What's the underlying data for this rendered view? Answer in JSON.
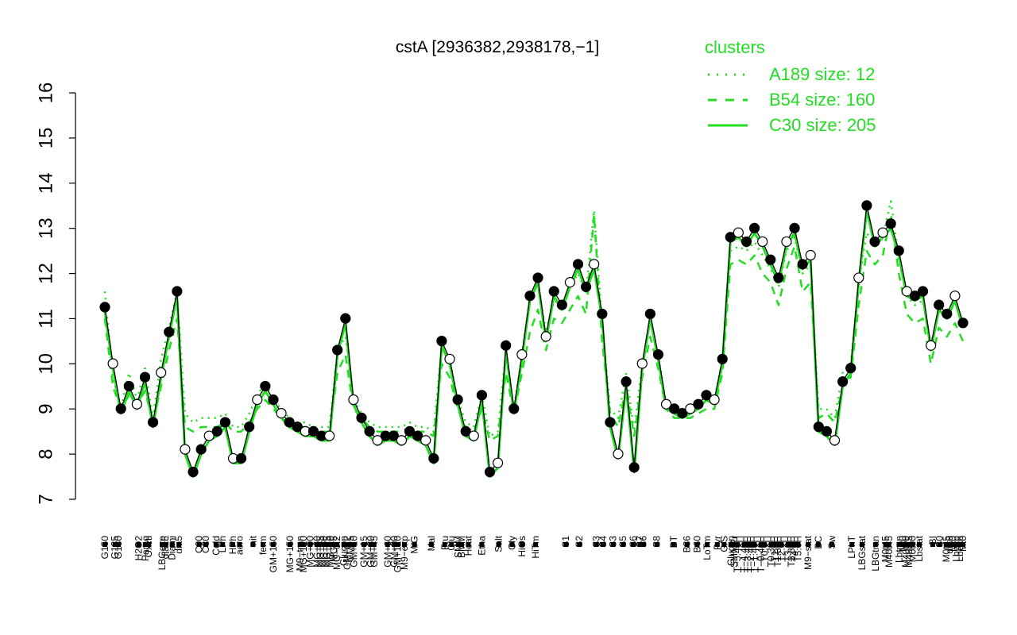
{
  "chart_data": {
    "type": "line",
    "title": "cstA [2936382,2938178,−1]",
    "xlabel": "",
    "ylabel": "",
    "ylim": [
      7,
      16
    ],
    "yticks": [
      7,
      8,
      9,
      10,
      11,
      12,
      13,
      14,
      15,
      16
    ],
    "grid": false,
    "legend_position": "top-right",
    "accent_color": "#22dd22",
    "legend": {
      "title": "clusters",
      "entries": [
        {
          "label": "A189 size: 12",
          "style": "dotted"
        },
        {
          "label": "B54 size: 160",
          "style": "dashed"
        },
        {
          "label": "C30 size: 205",
          "style": "solid"
        }
      ]
    },
    "x_tick_labels": [
      "G150",
      "G135",
      "G180",
      "H2O2",
      "Paraq",
      "Oxctl",
      "LBGexp",
      "dia15",
      "Diami",
      "dia5",
      "C90",
      "C30",
      "Cold",
      "LPh",
      "HPh",
      "aero",
      "nit",
      "ferm",
      "GM+150",
      "MG+150",
      "M9−tran",
      "MG+120",
      "MG+90",
      "MG+60",
      "MG+45",
      "MG+30",
      "MG+15",
      "MG+10",
      "MG+5",
      "MG−0.2",
      "Glucon",
      "GM−0.2",
      "GM+5",
      "GM+10",
      "GM+15",
      "GM+30",
      "GM+45",
      "GM+60",
      "GM+90",
      "GM+120",
      "M9−exp",
      "M/G",
      "Mal",
      "Fru",
      "Glu",
      "SMM",
      "BMM",
      "Heat",
      "Etha",
      "Salt",
      "Gly",
      "HiOs",
      "HiTm",
      "S1",
      "S2",
      "S3",
      "S4",
      "S3",
      "S5",
      "S6",
      "S7",
      "S6",
      "S8",
      "BT",
      "B36",
      "B60",
      "LoTm",
      "Pyr",
      "G/S",
      "Glucon",
      "SMMPr",
      "T−5.40H",
      "T−4.40H",
      "T−3.40H",
      "T−2.40H",
      "T−1.40H",
      "T−0.40H",
      "T0.0H",
      "T0.30H",
      "T1.0H",
      "T1.30H",
      "T2.0H",
      "T3.0H",
      "T3.30H",
      "T4.0H",
      "T5.0H",
      "M9−stat",
      "BC",
      "Sw",
      "LPhT",
      "LBGstat",
      "LBGtran",
      "M0t45",
      "M40t45",
      "Lbtran",
      "Mt0",
      "M40t90",
      "M40t45",
      "M0t90",
      "Lbstat",
      "BI",
      "S0",
      "M0t45",
      "dia0",
      "Mt0",
      "Lbexp",
      "Lbexp",
      "Mt0"
    ],
    "x_tick_labels_shown": [
      "G150",
      "G135",
      "G180",
      "H2O2",
      "Paraq",
      "Oxctl",
      "LBGexp",
      "dia15",
      "Diami",
      "dia5",
      "C90",
      "C30",
      "Cold",
      "LPh",
      "HPh",
      "aero",
      "nit",
      "ferm",
      "GM+150",
      "MG+150",
      "M9−tran",
      "MG+120",
      "MG+90",
      "MG+60",
      "MG+45",
      "MG+30",
      "MG+15",
      "MG+10",
      "MG+5",
      "MG−0.2",
      "Glucon",
      "GM−0.2",
      "GM+5",
      "GM+10",
      "GM+15",
      "GM+30",
      "GM+45",
      "GM+60",
      "GM+90",
      "GM+120",
      "M9−exp",
      "M/G",
      "Mal",
      "Fru",
      "Glu",
      "SMM",
      "BMM",
      "Heat",
      "Etha",
      "Salt",
      "Gly",
      "HiOs",
      "HiTm",
      "S1",
      "S2",
      "S3",
      "S4",
      "S3",
      "S5",
      "S6",
      "S7",
      "S6",
      "S8",
      "BT",
      "B36",
      "B60",
      "LoTm",
      "Pyr",
      "G/S",
      "Glucon",
      "SMMPr",
      "T−5.40H",
      "T−4.40H",
      "T−3.40H",
      "T−2.40H",
      "T−1.40H",
      "T−0.40H",
      "T0.0H",
      "T0.30H",
      "T1.0H",
      "T1.30H",
      "T2.0H",
      "T3.0H",
      "T3.30H",
      "T4.0H",
      "T5.0H",
      "M9−stat",
      "BC",
      "Sw",
      "LPhT",
      "LBGstat",
      "LBGtran",
      "M0t45",
      "M40t45",
      "Lbtran",
      "Mt0",
      "M40t90",
      "M40t45",
      "M0t90",
      "Lbstat",
      "BI",
      "S0",
      "M0t45",
      "dia0",
      "Mt0",
      "Lbexp",
      "Lbexp",
      "Mt0"
    ],
    "x_ticks": [
      0,
      3,
      4,
      10,
      12,
      13,
      17,
      18,
      20,
      22,
      28,
      30,
      33,
      35,
      38,
      40,
      44,
      47,
      50,
      55,
      58,
      59,
      61,
      63,
      64,
      65,
      66,
      67,
      68,
      69,
      71,
      72,
      73,
      74,
      77,
      79,
      80,
      84,
      86,
      87,
      89,
      92,
      97,
      101,
      103,
      105,
      106,
      108,
      112,
      117,
      121,
      124,
      128,
      137,
      141,
      146,
      148,
      151,
      154,
      157,
      159,
      160,
      164,
      169,
      173,
      176,
      179,
      182,
      184,
      186,
      187,
      188,
      190,
      191,
      192,
      193,
      195,
      196,
      198,
      199,
      200,
      201,
      203,
      204,
      205,
      206,
      209,
      212,
      216,
      222,
      225,
      229,
      232,
      233,
      236,
      237,
      238,
      239,
      240,
      242,
      246,
      248,
      250,
      251,
      252,
      253,
      254,
      255
    ],
    "x_range": [
      0,
      255
    ],
    "series": [
      {
        "style": "solid",
        "color": "#22dd22",
        "values": [
          11.15,
          9.9,
          8.9,
          9.4,
          9.0,
          9.6,
          8.6,
          9.7,
          10.6,
          11.5,
          8.0,
          7.5,
          8.0,
          8.3,
          8.4,
          8.6,
          7.8,
          7.8,
          8.5,
          9.1,
          9.4,
          9.1,
          8.8,
          8.6,
          8.5,
          8.4,
          8.4,
          8.3,
          8.3,
          10.2,
          10.9,
          9.1,
          8.7,
          8.4,
          8.2,
          8.3,
          8.3,
          8.2,
          8.4,
          8.3,
          8.2,
          7.8,
          10.4,
          10.0,
          9.1,
          8.4,
          8.3,
          9.2,
          7.5,
          7.7,
          10.3,
          8.9,
          10.1,
          11.4,
          11.8,
          10.5,
          11.5,
          11.2,
          11.7,
          12.1,
          11.6,
          12.1,
          11.0,
          8.6,
          7.9,
          9.5,
          7.6,
          9.9,
          11.0,
          10.1,
          9.0,
          8.9,
          8.8,
          8.9,
          9.0,
          9.2,
          9.1,
          10.0,
          12.7,
          12.8,
          12.6,
          12.9,
          12.6,
          12.2,
          11.8,
          12.6,
          12.9,
          12.1,
          12.3,
          8.5,
          8.4,
          8.2,
          9.5,
          9.8,
          11.8,
          13.4,
          12.6,
          12.8,
          13.0,
          12.4,
          11.5,
          11.4,
          11.5,
          10.3,
          11.2,
          11.0,
          11.4,
          10.8
        ]
      },
      {
        "style": "dashed",
        "color": "#22dd22",
        "values": [
          11.0,
          9.5,
          9.0,
          9.3,
          9.1,
          9.4,
          8.7,
          9.5,
          10.3,
          11.0,
          8.6,
          8.5,
          8.6,
          8.6,
          8.6,
          8.7,
          8.5,
          8.5,
          8.7,
          9.0,
          9.2,
          9.0,
          8.8,
          8.7,
          8.6,
          8.6,
          8.5,
          8.5,
          8.5,
          9.8,
          10.2,
          9.0,
          8.8,
          8.6,
          8.5,
          8.5,
          8.5,
          8.5,
          8.6,
          8.5,
          8.5,
          8.4,
          10.0,
          9.7,
          9.0,
          8.6,
          8.5,
          9.0,
          8.3,
          8.4,
          9.8,
          8.9,
          9.8,
          10.7,
          11.2,
          10.3,
          11.0,
          10.9,
          11.2,
          11.5,
          11.1,
          13.3,
          10.5,
          8.9,
          8.6,
          9.5,
          8.4,
          9.7,
          10.6,
          9.9,
          9.0,
          8.8,
          8.8,
          8.8,
          8.9,
          9.0,
          9.0,
          9.8,
          12.2,
          12.3,
          12.2,
          12.4,
          12.0,
          11.8,
          11.3,
          12.1,
          12.6,
          11.6,
          11.8,
          8.8,
          8.9,
          8.7,
          9.5,
          9.7,
          11.3,
          12.5,
          12.2,
          12.4,
          13.3,
          12.0,
          11.1,
          10.9,
          11.0,
          10.0,
          10.8,
          10.6,
          10.9,
          10.5
        ]
      },
      {
        "style": "dotted",
        "color": "#22dd22",
        "values": [
          11.6,
          9.7,
          9.0,
          9.8,
          9.2,
          9.9,
          8.8,
          10.1,
          10.8,
          11.6,
          8.9,
          8.7,
          8.8,
          8.8,
          8.8,
          8.9,
          8.6,
          8.6,
          8.9,
          9.3,
          9.6,
          9.2,
          9.0,
          8.8,
          8.7,
          8.7,
          8.6,
          8.6,
          8.6,
          10.3,
          10.6,
          9.2,
          8.9,
          8.7,
          8.6,
          8.6,
          8.6,
          8.6,
          8.7,
          8.6,
          8.6,
          8.5,
          10.4,
          10.1,
          9.2,
          8.7,
          8.6,
          9.3,
          8.4,
          8.5,
          10.3,
          9.0,
          10.2,
          11.5,
          11.8,
          10.7,
          11.4,
          11.3,
          11.7,
          12.0,
          11.6,
          13.4,
          10.9,
          9.0,
          8.8,
          9.8,
          8.5,
          10.0,
          11.0,
          10.2,
          9.1,
          8.9,
          8.9,
          8.9,
          9.0,
          9.2,
          9.2,
          10.1,
          12.5,
          12.6,
          12.5,
          12.7,
          12.4,
          12.1,
          11.7,
          12.5,
          12.8,
          12.0,
          12.2,
          9.0,
          9.0,
          8.8,
          9.8,
          10.0,
          11.8,
          12.9,
          12.6,
          12.8,
          13.6,
          12.3,
          11.5,
          11.3,
          11.4,
          10.4,
          11.2,
          11.0,
          11.4,
          10.9
        ]
      }
    ]
  }
}
